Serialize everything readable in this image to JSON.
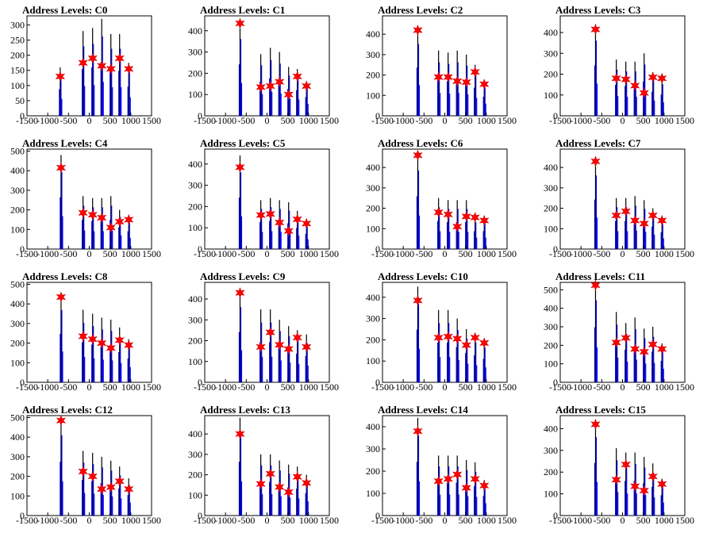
{
  "chart_data": [
    {
      "type": "histogram",
      "title": "Address Levels: C0",
      "ylim": [
        0,
        330
      ],
      "yticks": [
        0,
        50,
        100,
        150,
        200,
        250,
        300
      ],
      "xticks": [
        -1500,
        -1000,
        -500,
        0,
        500,
        1000,
        1500
      ],
      "xlim": [
        -1500,
        1500
      ],
      "groups": [
        {
          "x": -700,
          "h": 160,
          "m": 130
        },
        {
          "x": -150,
          "h": 280,
          "m": 175
        },
        {
          "x": 80,
          "h": 290,
          "m": 190
        },
        {
          "x": 300,
          "h": 320,
          "m": 165
        },
        {
          "x": 520,
          "h": 270,
          "m": 155
        },
        {
          "x": 730,
          "h": 270,
          "m": 190
        },
        {
          "x": 950,
          "h": 175,
          "m": 155
        }
      ]
    },
    {
      "type": "histogram",
      "title": "Address Levels: C1",
      "ylim": [
        0,
        470
      ],
      "yticks": [
        0,
        100,
        200,
        300,
        400
      ],
      "xticks": [
        -1500,
        -1000,
        -500,
        0,
        500,
        1000,
        1500
      ],
      "xlim": [
        -1500,
        1500
      ],
      "groups": [
        {
          "x": -650,
          "h": 440,
          "m": 435
        },
        {
          "x": -150,
          "h": 290,
          "m": 135
        },
        {
          "x": 80,
          "h": 320,
          "m": 140
        },
        {
          "x": 300,
          "h": 300,
          "m": 160
        },
        {
          "x": 520,
          "h": 230,
          "m": 100
        },
        {
          "x": 730,
          "h": 220,
          "m": 185
        },
        {
          "x": 950,
          "h": 160,
          "m": 140
        }
      ]
    },
    {
      "type": "histogram",
      "title": "Address Levels: C2",
      "ylim": [
        0,
        490
      ],
      "yticks": [
        0,
        100,
        200,
        300,
        400
      ],
      "xticks": [
        -1500,
        -1000,
        -500,
        0,
        500,
        1000,
        1500
      ],
      "xlim": [
        -1500,
        1500
      ],
      "groups": [
        {
          "x": -650,
          "h": 430,
          "m": 420
        },
        {
          "x": -150,
          "h": 320,
          "m": 190
        },
        {
          "x": 80,
          "h": 310,
          "m": 190
        },
        {
          "x": 300,
          "h": 320,
          "m": 170
        },
        {
          "x": 520,
          "h": 300,
          "m": 165
        },
        {
          "x": 730,
          "h": 250,
          "m": 215
        },
        {
          "x": 950,
          "h": 170,
          "m": 155
        }
      ]
    },
    {
      "type": "histogram",
      "title": "Address Levels: C3",
      "ylim": [
        0,
        480
      ],
      "yticks": [
        0,
        100,
        200,
        300,
        400
      ],
      "xticks": [
        -1500,
        -1000,
        -500,
        0,
        500,
        1000,
        1500
      ],
      "xlim": [
        -1500,
        1500
      ],
      "groups": [
        {
          "x": -650,
          "h": 440,
          "m": 415
        },
        {
          "x": -150,
          "h": 270,
          "m": 180
        },
        {
          "x": 80,
          "h": 260,
          "m": 175
        },
        {
          "x": 300,
          "h": 260,
          "m": 145
        },
        {
          "x": 520,
          "h": 300,
          "m": 110
        },
        {
          "x": 730,
          "h": 210,
          "m": 185
        },
        {
          "x": 950,
          "h": 185,
          "m": 180
        }
      ]
    },
    {
      "type": "histogram",
      "title": "Address Levels: C4",
      "ylim": [
        0,
        510
      ],
      "yticks": [
        0,
        100,
        200,
        300,
        400,
        500
      ],
      "xticks": [
        -1500,
        -1000,
        -500,
        0,
        500,
        1000,
        1500
      ],
      "xlim": [
        -1500,
        1500
      ],
      "groups": [
        {
          "x": -680,
          "h": 480,
          "m": 415
        },
        {
          "x": -150,
          "h": 270,
          "m": 185
        },
        {
          "x": 80,
          "h": 260,
          "m": 175
        },
        {
          "x": 300,
          "h": 260,
          "m": 160
        },
        {
          "x": 520,
          "h": 270,
          "m": 110
        },
        {
          "x": 730,
          "h": 200,
          "m": 140
        },
        {
          "x": 950,
          "h": 165,
          "m": 150
        }
      ]
    },
    {
      "type": "histogram",
      "title": "Address Levels: C5",
      "ylim": [
        0,
        470
      ],
      "yticks": [
        0,
        100,
        200,
        300,
        400
      ],
      "xticks": [
        -1500,
        -1000,
        -500,
        0,
        500,
        1000,
        1500
      ],
      "xlim": [
        -1500,
        1500
      ],
      "groups": [
        {
          "x": -650,
          "h": 440,
          "m": 385
        },
        {
          "x": -150,
          "h": 230,
          "m": 160
        },
        {
          "x": 80,
          "h": 240,
          "m": 165
        },
        {
          "x": 300,
          "h": 230,
          "m": 125
        },
        {
          "x": 520,
          "h": 220,
          "m": 85
        },
        {
          "x": 730,
          "h": 180,
          "m": 140
        },
        {
          "x": 950,
          "h": 130,
          "m": 120
        }
      ]
    },
    {
      "type": "histogram",
      "title": "Address Levels: C6",
      "ylim": [
        0,
        490
      ],
      "yticks": [
        0,
        100,
        200,
        300,
        400
      ],
      "xticks": [
        -1500,
        -1000,
        -500,
        0,
        500,
        1000,
        1500
      ],
      "xlim": [
        -1500,
        1500
      ],
      "groups": [
        {
          "x": -650,
          "h": 470,
          "m": 460
        },
        {
          "x": -150,
          "h": 250,
          "m": 180
        },
        {
          "x": 80,
          "h": 240,
          "m": 170
        },
        {
          "x": 300,
          "h": 240,
          "m": 110
        },
        {
          "x": 520,
          "h": 240,
          "m": 160
        },
        {
          "x": 730,
          "h": 160,
          "m": 155
        },
        {
          "x": 950,
          "h": 160,
          "m": 140
        }
      ]
    },
    {
      "type": "histogram",
      "title": "Address Levels: C7",
      "ylim": [
        0,
        490
      ],
      "yticks": [
        0,
        100,
        200,
        300,
        400
      ],
      "xticks": [
        -1500,
        -1000,
        -500,
        0,
        500,
        1000,
        1500
      ],
      "xlim": [
        -1500,
        1500
      ],
      "groups": [
        {
          "x": -650,
          "h": 440,
          "m": 430
        },
        {
          "x": -150,
          "h": 250,
          "m": 165
        },
        {
          "x": 80,
          "h": 250,
          "m": 185
        },
        {
          "x": 300,
          "h": 260,
          "m": 140
        },
        {
          "x": 520,
          "h": 240,
          "m": 125
        },
        {
          "x": 730,
          "h": 200,
          "m": 165
        },
        {
          "x": 950,
          "h": 150,
          "m": 140
        }
      ]
    },
    {
      "type": "histogram",
      "title": "Address Levels: C8",
      "ylim": [
        0,
        510
      ],
      "yticks": [
        0,
        100,
        200,
        300,
        400,
        500
      ],
      "xticks": [
        -1500,
        -1000,
        -500,
        0,
        500,
        1000,
        1500
      ],
      "xlim": [
        -1500,
        1500
      ],
      "groups": [
        {
          "x": -680,
          "h": 450,
          "m": 435
        },
        {
          "x": -150,
          "h": 370,
          "m": 235
        },
        {
          "x": 80,
          "h": 350,
          "m": 220
        },
        {
          "x": 300,
          "h": 330,
          "m": 200
        },
        {
          "x": 520,
          "h": 320,
          "m": 175
        },
        {
          "x": 730,
          "h": 280,
          "m": 215
        },
        {
          "x": 950,
          "h": 220,
          "m": 190
        }
      ]
    },
    {
      "type": "histogram",
      "title": "Address Levels: C9",
      "ylim": [
        0,
        480
      ],
      "yticks": [
        0,
        100,
        200,
        300,
        400
      ],
      "xticks": [
        -1500,
        -1000,
        -500,
        0,
        500,
        1000,
        1500
      ],
      "xlim": [
        -1500,
        1500
      ],
      "groups": [
        {
          "x": -650,
          "h": 440,
          "m": 430
        },
        {
          "x": -150,
          "h": 350,
          "m": 170
        },
        {
          "x": 80,
          "h": 350,
          "m": 240
        },
        {
          "x": 300,
          "h": 300,
          "m": 180
        },
        {
          "x": 520,
          "h": 270,
          "m": 160
        },
        {
          "x": 730,
          "h": 250,
          "m": 215
        },
        {
          "x": 950,
          "h": 230,
          "m": 170
        }
      ]
    },
    {
      "type": "histogram",
      "title": "Address Levels: C10",
      "ylim": [
        0,
        470
      ],
      "yticks": [
        0,
        100,
        200,
        300,
        400
      ],
      "xticks": [
        -1500,
        -1000,
        -500,
        0,
        500,
        1000,
        1500
      ],
      "xlim": [
        -1500,
        1500
      ],
      "groups": [
        {
          "x": -650,
          "h": 450,
          "m": 385
        },
        {
          "x": -150,
          "h": 340,
          "m": 210
        },
        {
          "x": 80,
          "h": 340,
          "m": 215
        },
        {
          "x": 300,
          "h": 300,
          "m": 205
        },
        {
          "x": 520,
          "h": 250,
          "m": 175
        },
        {
          "x": 730,
          "h": 230,
          "m": 210
        },
        {
          "x": 950,
          "h": 200,
          "m": 185
        }
      ]
    },
    {
      "type": "histogram",
      "title": "Address Levels: C11",
      "ylim": [
        0,
        540
      ],
      "yticks": [
        0,
        100,
        200,
        300,
        400,
        500
      ],
      "xticks": [
        -1500,
        -1000,
        -500,
        0,
        500,
        1000,
        1500
      ],
      "xlim": [
        -1500,
        1500
      ],
      "groups": [
        {
          "x": -650,
          "h": 540,
          "m": 525
        },
        {
          "x": -150,
          "h": 380,
          "m": 215
        },
        {
          "x": 80,
          "h": 320,
          "m": 240
        },
        {
          "x": 300,
          "h": 350,
          "m": 180
        },
        {
          "x": 520,
          "h": 290,
          "m": 165
        },
        {
          "x": 730,
          "h": 300,
          "m": 205
        },
        {
          "x": 950,
          "h": 210,
          "m": 180
        }
      ]
    },
    {
      "type": "histogram",
      "title": "Address Levels: C12",
      "ylim": [
        0,
        510
      ],
      "yticks": [
        0,
        100,
        200,
        300,
        400,
        500
      ],
      "xticks": [
        -1500,
        -1000,
        -500,
        0,
        500,
        1000,
        1500
      ],
      "xlim": [
        -1500,
        1500
      ],
      "groups": [
        {
          "x": -680,
          "h": 500,
          "m": 485
        },
        {
          "x": -150,
          "h": 330,
          "m": 225
        },
        {
          "x": 80,
          "h": 320,
          "m": 200
        },
        {
          "x": 300,
          "h": 300,
          "m": 135
        },
        {
          "x": 520,
          "h": 280,
          "m": 145
        },
        {
          "x": 730,
          "h": 250,
          "m": 175
        },
        {
          "x": 950,
          "h": 190,
          "m": 135
        }
      ]
    },
    {
      "type": "histogram",
      "title": "Address Levels: C13",
      "ylim": [
        0,
        490
      ],
      "yticks": [
        0,
        100,
        200,
        300,
        400
      ],
      "xticks": [
        -1500,
        -1000,
        -500,
        0,
        500,
        1000,
        1500
      ],
      "xlim": [
        -1500,
        1500
      ],
      "groups": [
        {
          "x": -650,
          "h": 480,
          "m": 400
        },
        {
          "x": -150,
          "h": 300,
          "m": 155
        },
        {
          "x": 80,
          "h": 300,
          "m": 205
        },
        {
          "x": 300,
          "h": 270,
          "m": 140
        },
        {
          "x": 520,
          "h": 250,
          "m": 115
        },
        {
          "x": 730,
          "h": 240,
          "m": 190
        },
        {
          "x": 950,
          "h": 200,
          "m": 160
        }
      ]
    },
    {
      "type": "histogram",
      "title": "Address Levels: C14",
      "ylim": [
        0,
        450
      ],
      "yticks": [
        0,
        100,
        200,
        300,
        400
      ],
      "xticks": [
        -1500,
        -1000,
        -500,
        0,
        500,
        1000,
        1500
      ],
      "xlim": [
        -1500,
        1500
      ],
      "groups": [
        {
          "x": -650,
          "h": 440,
          "m": 380
        },
        {
          "x": -150,
          "h": 270,
          "m": 155
        },
        {
          "x": 80,
          "h": 270,
          "m": 165
        },
        {
          "x": 300,
          "h": 270,
          "m": 185
        },
        {
          "x": 520,
          "h": 250,
          "m": 125
        },
        {
          "x": 730,
          "h": 240,
          "m": 165
        },
        {
          "x": 950,
          "h": 160,
          "m": 135
        }
      ]
    },
    {
      "type": "histogram",
      "title": "Address Levels: C15",
      "ylim": [
        0,
        460
      ],
      "yticks": [
        0,
        100,
        200,
        300,
        400
      ],
      "xticks": [
        -1500,
        -1000,
        -500,
        0,
        500,
        1000,
        1500
      ],
      "xlim": [
        -1500,
        1500
      ],
      "groups": [
        {
          "x": -650,
          "h": 440,
          "m": 420
        },
        {
          "x": -150,
          "h": 310,
          "m": 165
        },
        {
          "x": 80,
          "h": 290,
          "m": 235
        },
        {
          "x": 300,
          "h": 290,
          "m": 135
        },
        {
          "x": 520,
          "h": 270,
          "m": 115
        },
        {
          "x": 730,
          "h": 240,
          "m": 180
        },
        {
          "x": 950,
          "h": 170,
          "m": 145
        }
      ]
    }
  ]
}
